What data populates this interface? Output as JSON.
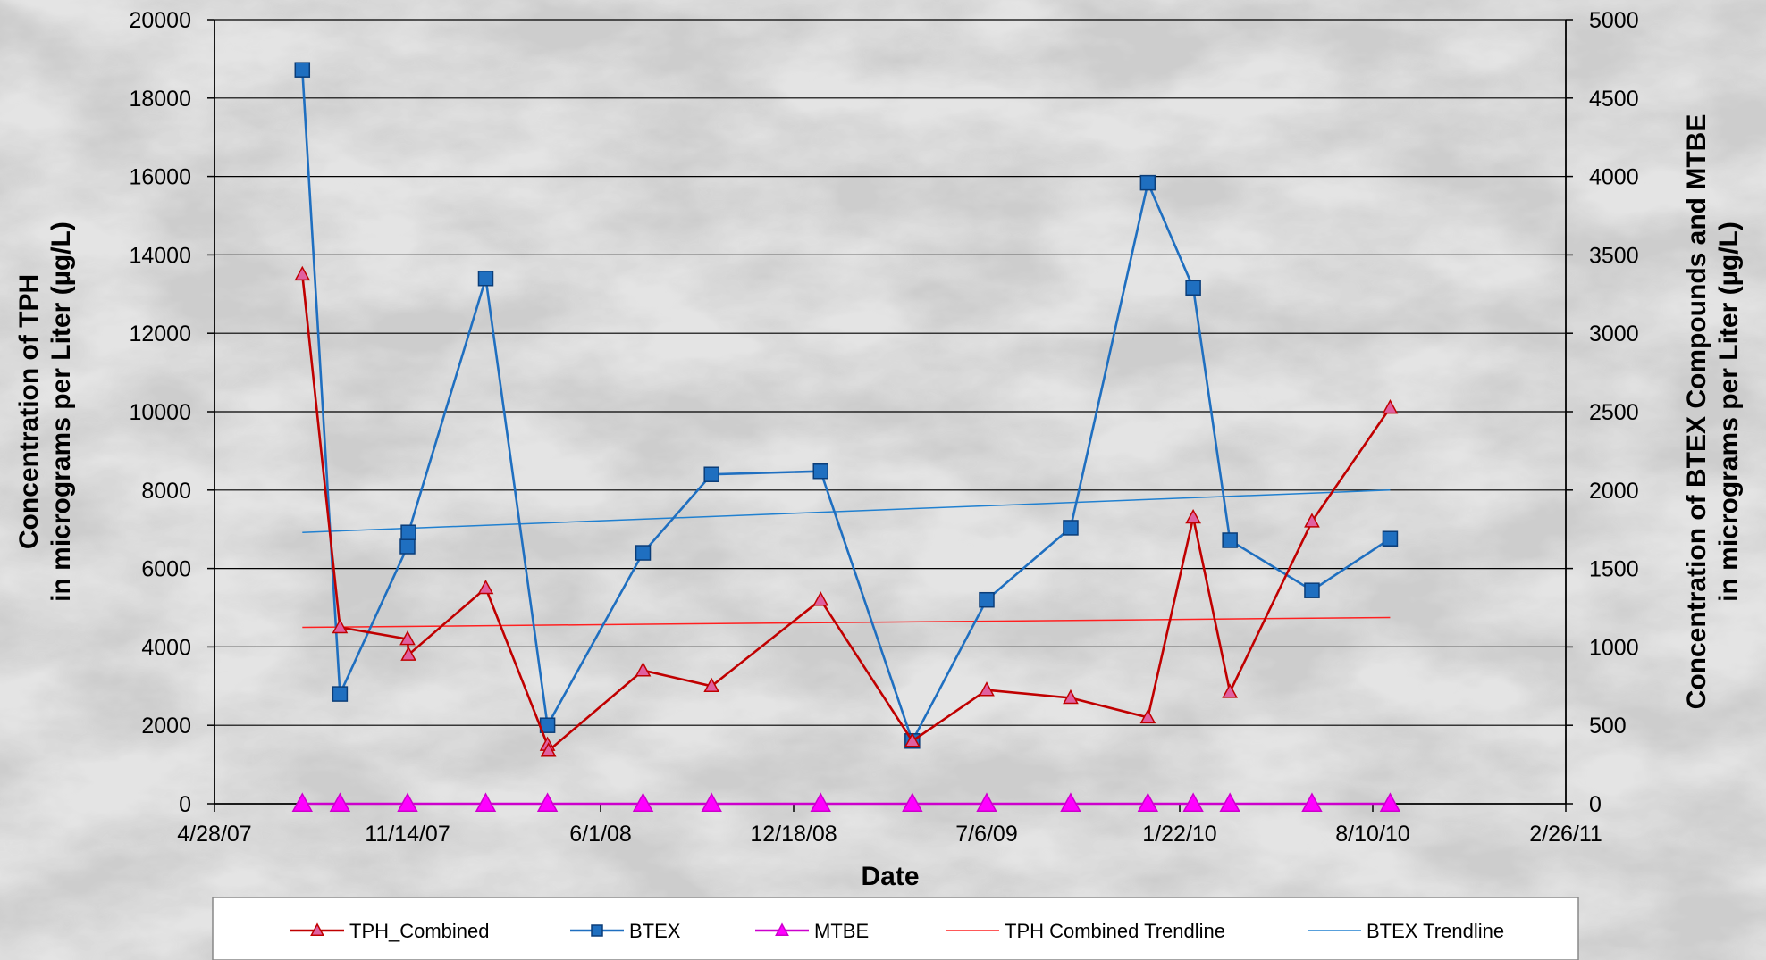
{
  "chart_data": {
    "type": "line",
    "title": "",
    "xlabel": "Date",
    "ylabel_left": "Concentration of TPH\nin micrograms per Liter (µg/L)",
    "ylabel_right": "Concentration of BTEX Compounds and MTBE\nin micrograms per Liter (µg/L)",
    "x_ticks": [
      "4/28/07",
      "11/14/07",
      "6/1/08",
      "12/18/08",
      "7/6/09",
      "1/22/10",
      "8/10/10",
      "2/26/11"
    ],
    "y_left_ticks": [
      "0",
      "2000",
      "4000",
      "6000",
      "8000",
      "10000",
      "12000",
      "14000",
      "16000",
      "18000",
      "20000"
    ],
    "y_right_ticks": [
      "0",
      "500",
      "1000",
      "1500",
      "2000",
      "2500",
      "3000",
      "3500",
      "4000",
      "4500",
      "5000"
    ],
    "xlim": [
      "2007-04-28",
      "2011-02-26"
    ],
    "ylim_left": [
      0,
      20000
    ],
    "ylim_right": [
      0,
      5000
    ],
    "grid": "horizontal",
    "legend_position": "bottom",
    "series": [
      {
        "name": "TPH_Combined",
        "axis": "left",
        "color": "#c00000",
        "marker": "triangle",
        "marker_fill": "#e060a0",
        "points": [
          {
            "x": "2007-07-28",
            "y": 13500
          },
          {
            "x": "2007-09-05",
            "y": 4500
          },
          {
            "x": "2007-11-14",
            "y": 4200
          },
          {
            "x": "2007-11-15",
            "y": 3800
          },
          {
            "x": "2008-02-03",
            "y": 5500
          },
          {
            "x": "2008-04-07",
            "y": 1500
          },
          {
            "x": "2008-04-08",
            "y": 1350
          },
          {
            "x": "2008-07-15",
            "y": 3400
          },
          {
            "x": "2008-09-24",
            "y": 3000
          },
          {
            "x": "2009-01-15",
            "y": 5200
          },
          {
            "x": "2009-04-20",
            "y": 1600
          },
          {
            "x": "2009-07-06",
            "y": 2900
          },
          {
            "x": "2009-10-01",
            "y": 2700
          },
          {
            "x": "2009-12-20",
            "y": 2200
          },
          {
            "x": "2010-02-05",
            "y": 7300
          },
          {
            "x": "2010-03-15",
            "y": 2850
          },
          {
            "x": "2010-06-08",
            "y": 7200
          },
          {
            "x": "2010-08-28",
            "y": 10100
          }
        ]
      },
      {
        "name": "BTEX",
        "axis": "right",
        "color": "#1f6fc0",
        "marker": "square",
        "marker_fill": "#1f6fc0",
        "points": [
          {
            "x": "2007-07-28",
            "y": 4680
          },
          {
            "x": "2007-09-05",
            "y": 700
          },
          {
            "x": "2007-11-14",
            "y": 1640
          },
          {
            "x": "2007-11-15",
            "y": 1730
          },
          {
            "x": "2008-02-03",
            "y": 3350
          },
          {
            "x": "2008-04-07",
            "y": 500
          },
          {
            "x": "2008-07-15",
            "y": 1600
          },
          {
            "x": "2008-09-24",
            "y": 2100
          },
          {
            "x": "2009-01-15",
            "y": 2120
          },
          {
            "x": "2009-04-20",
            "y": 400
          },
          {
            "x": "2009-07-06",
            "y": 1300
          },
          {
            "x": "2009-10-01",
            "y": 1760
          },
          {
            "x": "2009-12-20",
            "y": 3960
          },
          {
            "x": "2010-02-05",
            "y": 3290
          },
          {
            "x": "2010-03-15",
            "y": 1680
          },
          {
            "x": "2010-06-08",
            "y": 1360
          },
          {
            "x": "2010-08-28",
            "y": 1690
          }
        ]
      },
      {
        "name": "MTBE",
        "axis": "right",
        "color": "#cc00cc",
        "marker": "triangle",
        "marker_fill": "#ff00ff",
        "points": [
          {
            "x": "2007-07-28",
            "y": 0
          },
          {
            "x": "2007-09-05",
            "y": 0
          },
          {
            "x": "2007-11-14",
            "y": 0
          },
          {
            "x": "2008-02-03",
            "y": 0
          },
          {
            "x": "2008-04-07",
            "y": 0
          },
          {
            "x": "2008-07-15",
            "y": 0
          },
          {
            "x": "2008-09-24",
            "y": 0
          },
          {
            "x": "2009-01-15",
            "y": 0
          },
          {
            "x": "2009-04-20",
            "y": 0
          },
          {
            "x": "2009-07-06",
            "y": 0
          },
          {
            "x": "2009-10-01",
            "y": 0
          },
          {
            "x": "2009-12-20",
            "y": 0
          },
          {
            "x": "2010-02-05",
            "y": 0
          },
          {
            "x": "2010-03-15",
            "y": 0
          },
          {
            "x": "2010-06-08",
            "y": 0
          },
          {
            "x": "2010-08-28",
            "y": 0
          }
        ]
      },
      {
        "name": "TPH Combined Trendline",
        "axis": "left",
        "color": "#ff2020",
        "marker": "none",
        "line_width": 1.5,
        "points": [
          {
            "x": "2007-07-28",
            "y": 4500
          },
          {
            "x": "2010-08-28",
            "y": 4750
          }
        ]
      },
      {
        "name": "BTEX Trendline",
        "axis": "right",
        "color": "#2080d0",
        "marker": "none",
        "line_width": 1.5,
        "points": [
          {
            "x": "2007-07-28",
            "y": 1730
          },
          {
            "x": "2010-08-28",
            "y": 2000
          }
        ]
      }
    ]
  }
}
